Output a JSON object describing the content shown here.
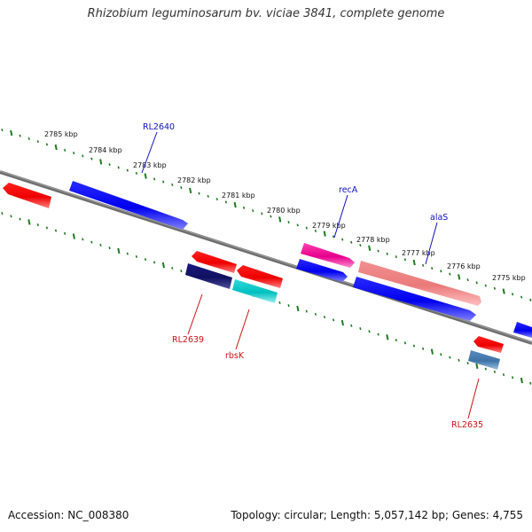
{
  "title": "Rhizobium leguminosarum bv. viciae 3841, complete genome",
  "footer": {
    "accession": "Accession: NC_008380",
    "summary": "Topology: circular; Length: 5,057,142 bp; Genes: 4,755"
  },
  "colors": {
    "backbone": "#777777",
    "ticks": "#1f7a1f",
    "forward_label": "#1010c0",
    "reverse_label": "#cc1010"
  },
  "scale_labels": [
    "2785 kbp",
    "2784 kbp",
    "2783 kbp",
    "2782 kbp",
    "2781 kbp",
    "2780 kbp",
    "2779 kbp",
    "2778 kbp",
    "2777 kbp",
    "2776 kbp",
    "2775 kbp"
  ],
  "gene_labels": {
    "RL2640": "RL2640",
    "recA": "recA",
    "alaS": "alaS",
    "RL2639": "RL2639",
    "rbsK": "rbsK",
    "RL2635": "RL2635"
  }
}
